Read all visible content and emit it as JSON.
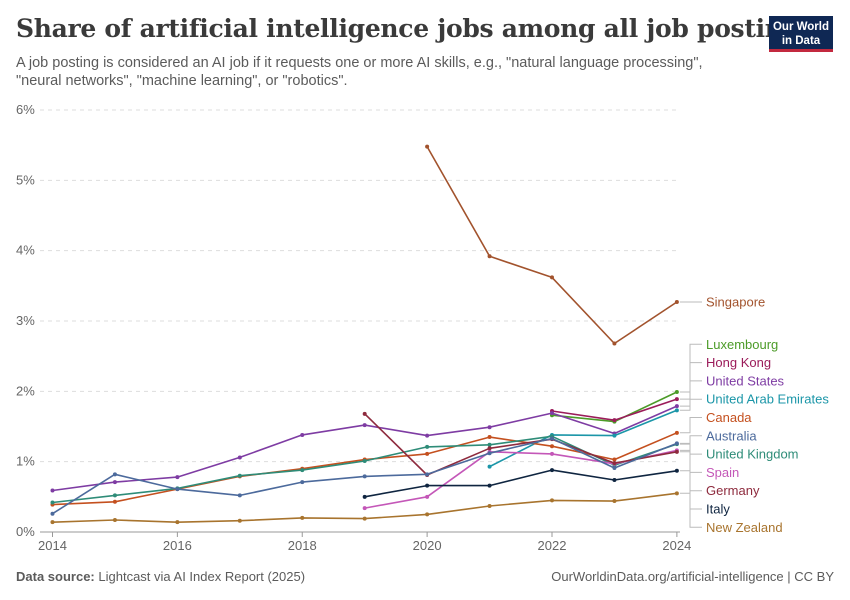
{
  "header": {
    "title": "Share of artificial intelligence jobs among all job postings",
    "subtitle": "A job posting is considered an AI job if it requests one or more AI skills, e.g., \"natural language processing\", \"neural networks\", \"machine learning\", or \"robotics\".",
    "logo_line1": "Our World",
    "logo_line2": "in Data"
  },
  "footer": {
    "source_label": "Data source:",
    "source_text": "Lightcast via AI Index Report (2025)",
    "url": "OurWorldinData.org/artificial-intelligence | CC BY"
  },
  "chart_data": {
    "type": "line",
    "title": "Share of artificial intelligence jobs among all job postings",
    "xlim": [
      2013.8,
      2024.05
    ],
    "ylim": [
      0,
      6
    ],
    "x_ticks": [
      2014,
      2016,
      2018,
      2020,
      2022,
      2024
    ],
    "y_ticks": [
      0,
      1,
      2,
      3,
      4,
      5,
      6
    ],
    "y_tick_labels": [
      "0%",
      "1%",
      "2%",
      "3%",
      "4%",
      "5%",
      "6%"
    ],
    "grid": "horizontal dashed",
    "legend": "labels at right end of lines",
    "series": [
      {
        "name": "Singapore",
        "color": "#a2532d",
        "points": [
          [
            2020,
            5.48
          ],
          [
            2021,
            3.92
          ],
          [
            2022,
            3.62
          ],
          [
            2023,
            2.68
          ],
          [
            2024,
            3.27
          ]
        ]
      },
      {
        "name": "Luxembourg",
        "color": "#4c9b28",
        "points": [
          [
            2022,
            1.66
          ],
          [
            2023,
            1.57
          ],
          [
            2024,
            1.99
          ]
        ]
      },
      {
        "name": "Hong Kong",
        "color": "#9b1c5a",
        "points": [
          [
            2022,
            1.72
          ],
          [
            2023,
            1.59
          ],
          [
            2024,
            1.89
          ]
        ]
      },
      {
        "name": "United States",
        "color": "#7e3ca3",
        "points": [
          [
            2014,
            0.59
          ],
          [
            2015,
            0.71
          ],
          [
            2016,
            0.78
          ],
          [
            2017,
            1.06
          ],
          [
            2018,
            1.38
          ],
          [
            2019,
            1.52
          ],
          [
            2020,
            1.37
          ],
          [
            2021,
            1.49
          ],
          [
            2022,
            1.69
          ],
          [
            2023,
            1.4
          ],
          [
            2024,
            1.79
          ]
        ]
      },
      {
        "name": "United Arab Emirates",
        "color": "#1b96a8",
        "points": [
          [
            2021,
            0.93
          ],
          [
            2022,
            1.38
          ],
          [
            2023,
            1.37
          ],
          [
            2024,
            1.73
          ]
        ]
      },
      {
        "name": "Canada",
        "color": "#c4501f",
        "points": [
          [
            2014,
            0.39
          ],
          [
            2015,
            0.43
          ],
          [
            2016,
            0.61
          ],
          [
            2017,
            0.79
          ],
          [
            2018,
            0.9
          ],
          [
            2019,
            1.03
          ],
          [
            2020,
            1.11
          ],
          [
            2021,
            1.35
          ],
          [
            2022,
            1.22
          ],
          [
            2023,
            1.03
          ],
          [
            2024,
            1.41
          ]
        ]
      },
      {
        "name": "United Kingdom",
        "color": "#2e8c78",
        "points": [
          [
            2014,
            0.42
          ],
          [
            2015,
            0.52
          ],
          [
            2016,
            0.62
          ],
          [
            2017,
            0.8
          ],
          [
            2018,
            0.88
          ],
          [
            2019,
            1.01
          ],
          [
            2020,
            1.21
          ],
          [
            2021,
            1.24
          ],
          [
            2022,
            1.36
          ],
          [
            2023,
            0.95
          ],
          [
            2024,
            1.25
          ]
        ]
      },
      {
        "name": "Spain",
        "color": "#c457b8",
        "points": [
          [
            2019,
            0.34
          ],
          [
            2020,
            0.5
          ],
          [
            2021,
            1.14
          ],
          [
            2022,
            1.11
          ],
          [
            2023,
            0.97
          ],
          [
            2024,
            1.16
          ]
        ]
      },
      {
        "name": "Germany",
        "color": "#8e2b3e",
        "points": [
          [
            2019,
            1.68
          ],
          [
            2020,
            0.81
          ],
          [
            2021,
            1.19
          ],
          [
            2022,
            1.32
          ],
          [
            2023,
            0.98
          ],
          [
            2024,
            1.14
          ]
        ]
      },
      {
        "name": "Australia",
        "color": "#4c6a9c",
        "points": [
          [
            2014,
            0.26
          ],
          [
            2015,
            0.82
          ],
          [
            2016,
            0.61
          ],
          [
            2017,
            0.52
          ],
          [
            2018,
            0.71
          ],
          [
            2019,
            0.79
          ],
          [
            2020,
            0.82
          ],
          [
            2021,
            1.12
          ],
          [
            2022,
            1.33
          ],
          [
            2023,
            0.91
          ],
          [
            2024,
            1.26
          ]
        ]
      },
      {
        "name": "Italy",
        "color": "#0f2540",
        "points": [
          [
            2019,
            0.5
          ],
          [
            2020,
            0.66
          ],
          [
            2021,
            0.66
          ],
          [
            2022,
            0.88
          ],
          [
            2023,
            0.74
          ],
          [
            2024,
            0.87
          ]
        ]
      },
      {
        "name": "New Zealand",
        "color": "#a8742e",
        "points": [
          [
            2014,
            0.14
          ],
          [
            2015,
            0.17
          ],
          [
            2016,
            0.14
          ],
          [
            2017,
            0.16
          ],
          [
            2018,
            0.2
          ],
          [
            2019,
            0.19
          ],
          [
            2020,
            0.25
          ],
          [
            2021,
            0.37
          ],
          [
            2022,
            0.45
          ],
          [
            2023,
            0.44
          ],
          [
            2024,
            0.55
          ]
        ]
      }
    ]
  }
}
